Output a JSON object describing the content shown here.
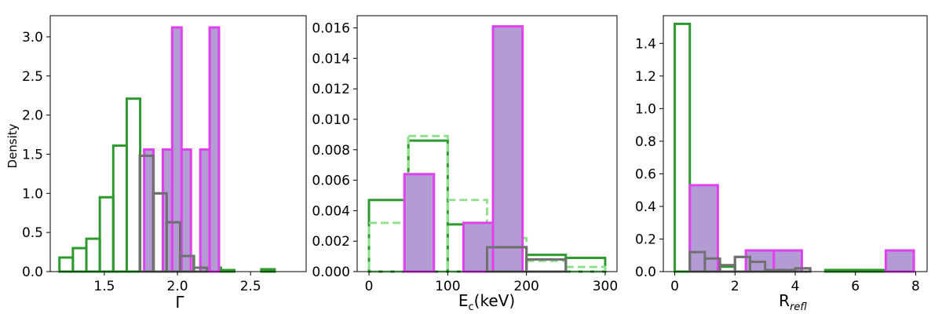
{
  "colors": {
    "green": "#2e9a2e",
    "light_green": "#90e090",
    "gray": "#707070",
    "magenta": "#e040f0",
    "purple_fill": "#b39bd4"
  },
  "chart_data": [
    {
      "type": "bar",
      "title": "",
      "xlabel": "Γ",
      "ylabel": "Density",
      "xlim": [
        1.13,
        2.88
      ],
      "ylim": [
        0,
        3.27
      ],
      "xticks": [
        "1.5",
        "2.0",
        "2.5"
      ],
      "xtick_values": [
        1.5,
        2.0,
        2.5
      ],
      "yticks": [
        "0.0",
        "0.5",
        "1.0",
        "1.5",
        "2.0",
        "2.5",
        "3.0"
      ],
      "ytick_values": [
        0,
        0.5,
        1.0,
        1.5,
        2.0,
        2.5,
        3.0
      ],
      "series": [
        {
          "style": "green",
          "bin_width": 0.092,
          "bins": [
            [
              1.193,
              0.18
            ],
            [
              1.285,
              0.3
            ],
            [
              1.377,
              0.42
            ],
            [
              1.469,
              0.95
            ],
            [
              1.561,
              1.61
            ],
            [
              1.653,
              2.21
            ],
            [
              1.745,
              1.48
            ],
            [
              1.837,
              1.0
            ],
            [
              1.929,
              0.63
            ],
            [
              2.021,
              0.2
            ],
            [
              2.113,
              0.05
            ],
            [
              2.205,
              0.05
            ],
            [
              2.297,
              0.02
            ],
            [
              2.389,
              0.0
            ],
            [
              2.481,
              0.0
            ],
            [
              2.573,
              0.03
            ]
          ]
        },
        {
          "style": "gray",
          "bin_width": 0.092,
          "bins": [
            [
              1.742,
              1.48
            ],
            [
              1.834,
              1.0
            ],
            [
              1.926,
              0.63
            ],
            [
              2.018,
              0.2
            ],
            [
              2.11,
              0.05
            ]
          ]
        },
        {
          "style": "purple",
          "bin_width": 0.064,
          "bins": [
            [
              1.772,
              1.56
            ],
            [
              1.836,
              0.0
            ],
            [
              1.9,
              1.56
            ],
            [
              1.964,
              3.12
            ],
            [
              2.028,
              1.56
            ],
            [
              2.092,
              0.0
            ],
            [
              2.156,
              1.56
            ],
            [
              2.22,
              3.12
            ]
          ]
        }
      ]
    },
    {
      "type": "bar",
      "title": "",
      "xlabel": "E_c(keV)",
      "ylabel": "",
      "xlim": [
        -15,
        315
      ],
      "ylim": [
        0,
        0.0168
      ],
      "xticks": [
        "0",
        "100",
        "200",
        "300"
      ],
      "xtick_values": [
        0,
        100,
        200,
        300
      ],
      "yticks": [
        "0.000",
        "0.002",
        "0.004",
        "0.006",
        "0.008",
        "0.010",
        "0.012",
        "0.014",
        "0.016"
      ],
      "ytick_values": [
        0,
        0.002,
        0.004,
        0.006,
        0.008,
        0.01,
        0.012,
        0.014,
        0.016
      ],
      "series": [
        {
          "style": "green",
          "bin_width": 50,
          "bins": [
            [
              0,
              0.0047
            ],
            [
              50,
              0.0086
            ],
            [
              100,
              0.0031
            ],
            [
              150,
              0.0016
            ],
            [
              200,
              0.0011
            ],
            [
              250,
              0.0009
            ]
          ]
        },
        {
          "style": "lightgreen-dashed",
          "bin_width": 50,
          "bins": [
            [
              0,
              0.0032
            ],
            [
              50,
              0.0089
            ],
            [
              100,
              0.0047
            ],
            [
              150,
              0.0022
            ],
            [
              200,
              0.0007
            ],
            [
              250,
              0.0003
            ]
          ]
        },
        {
          "style": "gray",
          "bin_width": 50,
          "bins": [
            [
              150,
              0.0016
            ],
            [
              200,
              0.0008
            ]
          ]
        },
        {
          "style": "purple",
          "bin_width": 37.5,
          "bins": [
            [
              45,
              0.0064
            ],
            [
              82.5,
              0.0
            ],
            [
              120,
              0.0032
            ],
            [
              157.5,
              0.0161
            ]
          ]
        }
      ]
    },
    {
      "type": "bar",
      "title": "",
      "xlabel": "R_refl",
      "ylabel": "",
      "xlim": [
        -0.38,
        8.38
      ],
      "ylim": [
        0,
        1.57
      ],
      "xticks": [
        "0",
        "2",
        "4",
        "6",
        "8"
      ],
      "xtick_values": [
        0,
        2,
        4,
        6,
        8
      ],
      "yticks": [
        "0.0",
        "0.2",
        "0.4",
        "0.6",
        "0.8",
        "1.0",
        "1.2",
        "1.4"
      ],
      "ytick_values": [
        0,
        0.2,
        0.4,
        0.6,
        0.8,
        1.0,
        1.2,
        1.4
      ],
      "series": [
        {
          "style": "green",
          "bin_width": 0.5,
          "bins": [
            [
              0.0,
              1.52
            ],
            [
              0.5,
              0.12
            ],
            [
              1.0,
              0.07
            ],
            [
              1.5,
              0.03
            ],
            [
              2.0,
              0.09
            ],
            [
              2.5,
              0.05
            ],
            [
              3.0,
              0.01
            ],
            [
              3.5,
              0.01
            ],
            [
              4.0,
              0.02
            ],
            [
              4.5,
              0.0
            ],
            [
              5.0,
              0.01
            ],
            [
              5.5,
              0.01
            ],
            [
              6.0,
              0.01
            ],
            [
              6.5,
              0.01
            ],
            [
              7.0,
              0.0
            ],
            [
              7.5,
              0.0
            ]
          ]
        },
        {
          "style": "gray",
          "bin_width": 0.5,
          "bins": [
            [
              0.5,
              0.12
            ],
            [
              1.0,
              0.08
            ],
            [
              1.5,
              0.04
            ],
            [
              2.0,
              0.09
            ],
            [
              2.5,
              0.06
            ],
            [
              3.0,
              0.01
            ],
            [
              3.5,
              0.01
            ],
            [
              4.0,
              0.02
            ]
          ]
        },
        {
          "style": "purple",
          "bin_width": 0.93,
          "bins": [
            [
              0.5,
              0.53
            ],
            [
              1.43,
              0.0
            ],
            [
              2.36,
              0.13
            ],
            [
              3.29,
              0.13
            ],
            [
              4.22,
              0.0
            ],
            [
              5.15,
              0.0
            ],
            [
              6.08,
              0.0
            ],
            [
              7.01,
              0.13
            ]
          ]
        }
      ]
    }
  ]
}
